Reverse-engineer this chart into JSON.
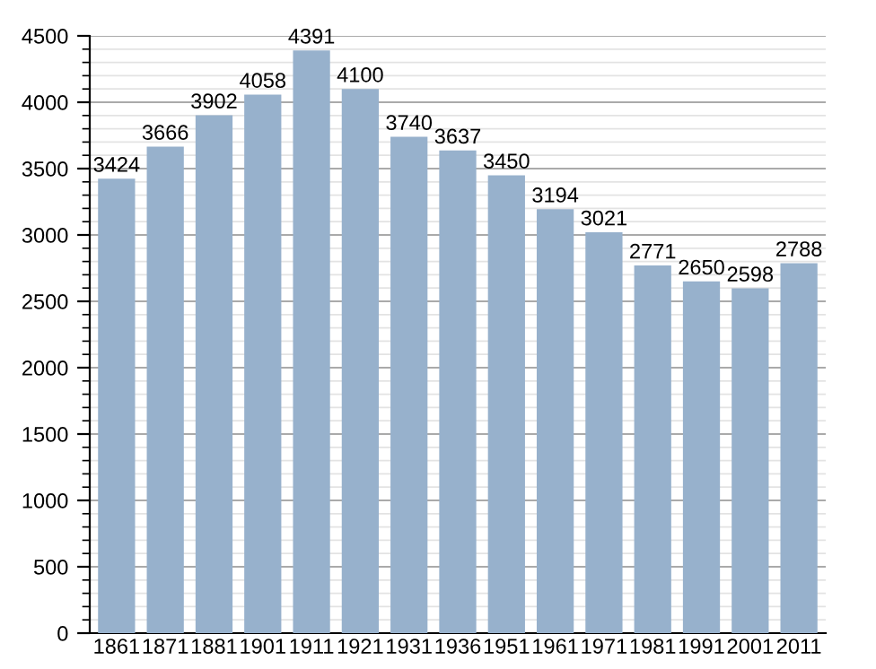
{
  "chart_data": {
    "type": "bar",
    "categories": [
      "1861",
      "1871",
      "1881",
      "1901",
      "1911",
      "1921",
      "1931",
      "1936",
      "1951",
      "1961",
      "1971",
      "1981",
      "1991",
      "2001",
      "2011"
    ],
    "values": [
      3424,
      3666,
      3902,
      4058,
      4391,
      4100,
      3740,
      3637,
      3450,
      3194,
      3021,
      2771,
      2650,
      2598,
      2788
    ],
    "color": "#97b1cc",
    "ylim": [
      0,
      4500
    ],
    "yticks": [
      0,
      500,
      1000,
      1500,
      2000,
      2500,
      3000,
      3500,
      4000,
      4500
    ],
    "grid": "y",
    "data_labels": true
  }
}
